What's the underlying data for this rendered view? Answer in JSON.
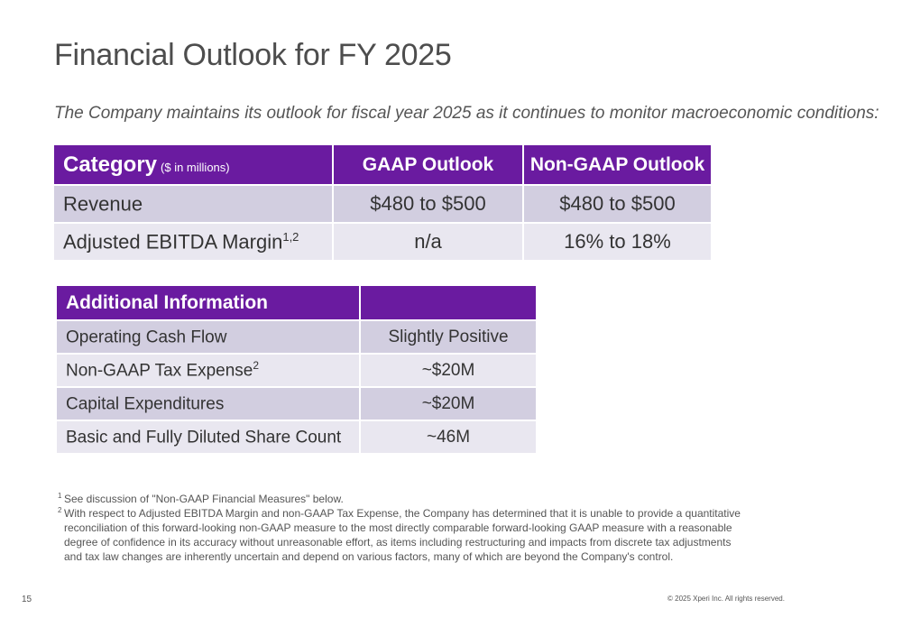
{
  "title": "Financial Outlook for FY 2025",
  "subtitle": "The Company maintains its outlook for fiscal year 2025 as it continues to monitor macroeconomic conditions:",
  "outlook_table": {
    "header": {
      "category": "Category",
      "category_note": "($ in millions)",
      "gaap": "GAAP Outlook",
      "non_gaap": "Non-GAAP Outlook"
    },
    "rows": [
      {
        "label": "Revenue",
        "sup": "",
        "gaap": "$480 to $500",
        "non_gaap": "$480 to $500"
      },
      {
        "label": "Adjusted EBITDA Margin",
        "sup": "1,2",
        "gaap": "n/a",
        "non_gaap": "16% to 18%"
      }
    ]
  },
  "additional_table": {
    "header": "Additional Information",
    "rows": [
      {
        "label": "Operating Cash Flow",
        "sup": "",
        "value": "Slightly Positive"
      },
      {
        "label": "Non-GAAP Tax Expense",
        "sup": "2",
        "value": "~$20M"
      },
      {
        "label": "Capital Expenditures",
        "sup": "",
        "value": "~$20M"
      },
      {
        "label": "Basic and Fully Diluted Share Count",
        "sup": "",
        "value": "~46M"
      }
    ]
  },
  "footnotes": [
    {
      "num": "1",
      "text": "See discussion of \"Non-GAAP Financial Measures\" below."
    },
    {
      "num": "2",
      "text": "With respect to Adjusted EBITDA Margin and non-GAAP Tax Expense, the Company has determined that it is unable to provide a quantitative reconciliation of this forward-looking non-GAAP measure to the most directly comparable forward-looking GAAP measure with a reasonable degree of confidence in its accuracy without unreasonable effort, as items including restructuring and impacts from discrete tax adjustments and tax law changes are inherently uncertain and depend on various factors, many of which are beyond the Company's control."
    }
  ],
  "page_number": "15",
  "copyright": "© 2025 Xperi Inc. All rights reserved.",
  "colors": {
    "header_purple": "#6a1ba0",
    "row_dark": "#d2cee0",
    "row_light": "#e9e7f0"
  }
}
